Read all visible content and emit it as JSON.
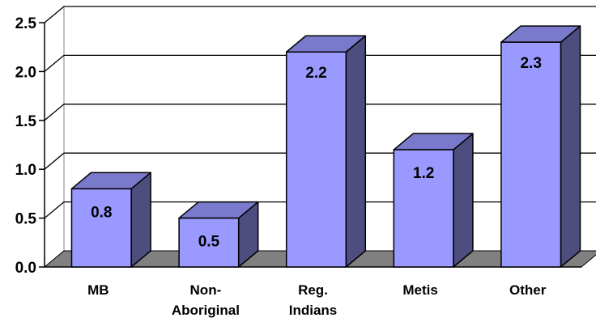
{
  "chart_data": {
    "type": "bar",
    "style": "3d-column",
    "categories": [
      [
        "MB"
      ],
      [
        "Non-",
        "Aboriginal"
      ],
      [
        "Reg.",
        "Indians"
      ],
      [
        "Metis"
      ],
      [
        "Other"
      ]
    ],
    "values": [
      0.8,
      0.5,
      2.2,
      1.2,
      2.3
    ],
    "data_labels": [
      "0.8",
      "0.5",
      "2.2",
      "1.2",
      "2.3"
    ],
    "y_ticks": [
      "0.0",
      "0.5",
      "1.0",
      "1.5",
      "2.0",
      "2.5"
    ],
    "ylim": [
      0,
      2.5
    ],
    "grid": true,
    "legend": "none",
    "colors": {
      "bar_front": "#9999ff",
      "bar_side": "#4d4d80",
      "bar_top": "#7a7acc",
      "floor": "#808080",
      "grid": "#000000",
      "wall": "#ffffff"
    }
  }
}
